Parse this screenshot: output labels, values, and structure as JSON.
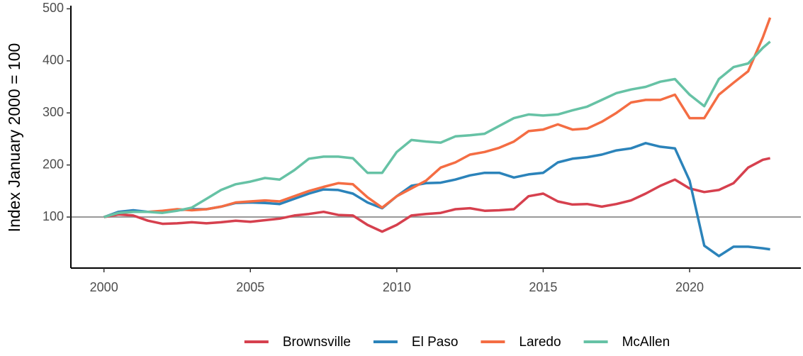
{
  "chart_data": {
    "type": "line",
    "ylabel": "Index January 2000 = 100",
    "x": [
      2000,
      2000.5,
      2001,
      2001.5,
      2002,
      2002.5,
      2003,
      2003.5,
      2004,
      2004.5,
      2005,
      2005.5,
      2006,
      2006.5,
      2007,
      2007.5,
      2008,
      2008.5,
      2009,
      2009.5,
      2010,
      2010.5,
      2011,
      2011.5,
      2012,
      2012.5,
      2013,
      2013.5,
      2014,
      2014.5,
      2015,
      2015.5,
      2016,
      2016.5,
      2017,
      2017.5,
      2018,
      2018.5,
      2019,
      2019.5,
      2020,
      2020.5,
      2021,
      2021.5,
      2022,
      2022.5,
      2022.75
    ],
    "series": [
      {
        "name": "Brownsville",
        "color": "#d6404e",
        "values": [
          100,
          105,
          103,
          93,
          87,
          88,
          90,
          88,
          90,
          93,
          91,
          94,
          97,
          103,
          106,
          110,
          104,
          103,
          85,
          72,
          85,
          103,
          106,
          108,
          115,
          117,
          112,
          113,
          115,
          140,
          145,
          130,
          124,
          125,
          120,
          125,
          132,
          145,
          160,
          172,
          155,
          148,
          152,
          165,
          195,
          210,
          213
        ]
      },
      {
        "name": "El Paso",
        "color": "#2b83ba",
        "values": [
          100,
          110,
          113,
          110,
          110,
          113,
          115,
          115,
          120,
          127,
          128,
          127,
          125,
          135,
          145,
          153,
          152,
          145,
          128,
          117,
          140,
          160,
          165,
          166,
          172,
          180,
          185,
          185,
          176,
          182,
          185,
          205,
          212,
          215,
          220,
          228,
          232,
          242,
          235,
          232,
          170,
          45,
          25,
          43,
          43,
          40,
          38
        ]
      },
      {
        "name": "Laredo",
        "color": "#f46d43",
        "values": [
          100,
          108,
          110,
          110,
          112,
          115,
          113,
          115,
          120,
          128,
          130,
          132,
          130,
          140,
          150,
          158,
          165,
          163,
          138,
          118,
          140,
          155,
          170,
          195,
          205,
          220,
          225,
          233,
          245,
          265,
          268,
          278,
          268,
          270,
          283,
          300,
          320,
          325,
          325,
          335,
          290,
          290,
          335,
          358,
          380,
          445,
          483
        ]
      },
      {
        "name": "McAllen",
        "color": "#66c2a5",
        "values": [
          100,
          108,
          110,
          110,
          108,
          112,
          118,
          135,
          152,
          163,
          168,
          175,
          172,
          190,
          212,
          216,
          216,
          213,
          185,
          185,
          225,
          248,
          245,
          243,
          255,
          257,
          260,
          275,
          290,
          297,
          295,
          297,
          305,
          312,
          325,
          338,
          345,
          350,
          360,
          365,
          335,
          313,
          365,
          388,
          395,
          425,
          437
        ]
      }
    ],
    "xlim": [
      1998.87,
      2023.8
    ],
    "ylim": [
      2,
      506
    ],
    "xticks": [
      2000,
      2005,
      2010,
      2015,
      2020
    ],
    "yticks": [
      100,
      200,
      300,
      400,
      500
    ],
    "hline": 100,
    "legend": "bottom"
  }
}
